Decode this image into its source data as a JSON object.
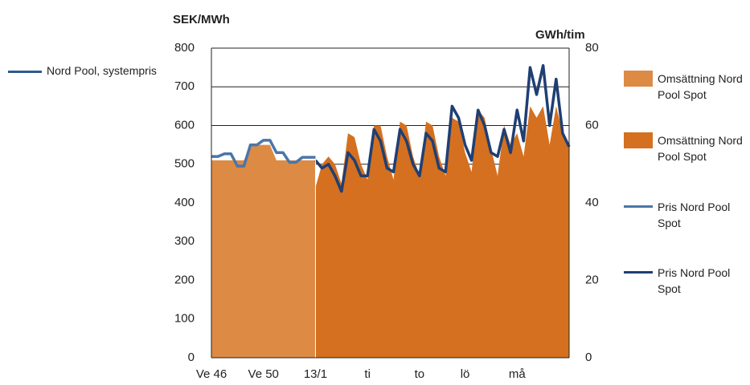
{
  "chart_data": {
    "type": "combo",
    "ylabel": "SEK/MWh",
    "y2label": "GWh/tim",
    "ylim": [
      0,
      800
    ],
    "yticks": [
      0,
      100,
      200,
      300,
      400,
      500,
      600,
      700,
      800
    ],
    "y2lim": [
      0,
      80
    ],
    "y2ticks": [
      0,
      20,
      40,
      60,
      80
    ],
    "grid": true,
    "categories": [
      "Ve 46",
      null,
      null,
      null,
      null,
      null,
      null,
      null,
      "Ve 50",
      null,
      null,
      null,
      null,
      null,
      null,
      null,
      "13/1",
      null,
      null,
      null,
      null,
      null,
      null,
      null,
      "ti",
      null,
      null,
      null,
      null,
      null,
      null,
      null,
      "to",
      null,
      null,
      null,
      null,
      null,
      null,
      "lö",
      null,
      null,
      null,
      null,
      null,
      null,
      null,
      "må",
      null,
      null,
      null,
      null,
      null,
      null,
      null,
      null
    ],
    "extra_legend": {
      "name": "Nord Pool, systempris",
      "color": "#2e5a8e"
    },
    "series": [
      {
        "name": "Omsättning Nord Pool Spot",
        "type": "area",
        "axis": "y2",
        "color": "#dd8a45",
        "values": [
          51,
          51,
          51,
          51,
          51,
          51,
          55,
          55,
          55,
          55,
          51,
          51,
          51,
          51,
          51,
          51,
          51,
          null,
          null,
          null,
          null,
          null,
          null,
          null,
          null,
          null,
          null,
          null,
          null,
          null,
          null,
          null,
          null,
          null,
          null,
          null,
          null,
          null,
          null,
          null,
          null,
          null,
          null,
          null,
          null,
          null,
          null,
          null,
          null,
          null,
          null,
          null,
          null,
          null,
          null,
          null
        ]
      },
      {
        "name": "Omsättning Nord Pool Spot",
        "type": "area",
        "axis": "y2",
        "color": "#d4701f",
        "values": [
          null,
          null,
          null,
          null,
          null,
          null,
          null,
          null,
          null,
          null,
          null,
          null,
          null,
          null,
          null,
          null,
          44,
          50,
          52,
          50,
          45,
          58,
          57,
          50,
          46,
          60,
          60,
          52,
          46,
          61,
          60,
          52,
          47,
          61,
          60,
          52,
          47,
          62,
          61,
          53,
          48,
          64,
          62,
          54,
          47,
          60,
          55,
          58,
          52,
          65,
          62,
          65,
          55,
          65,
          58,
          55
        ]
      },
      {
        "name": "Pris Nord Pool Spot",
        "type": "line",
        "axis": "y",
        "color": "#4a76a8",
        "values": [
          520,
          520,
          527,
          527,
          495,
          495,
          550,
          550,
          562,
          562,
          530,
          530,
          505,
          505,
          518,
          518,
          518,
          null,
          null,
          null,
          null,
          null,
          null,
          null,
          null,
          null,
          null,
          null,
          null,
          null,
          null,
          null,
          null,
          null,
          null,
          null,
          null,
          null,
          null,
          null,
          null,
          null,
          null,
          null,
          null,
          null,
          null,
          null,
          null,
          null,
          null,
          null,
          null,
          null,
          null,
          null
        ]
      },
      {
        "name": "Pris Nord Pool Spot",
        "type": "line",
        "axis": "y",
        "color": "#1f3f73",
        "values": [
          null,
          null,
          null,
          null,
          null,
          null,
          null,
          null,
          null,
          null,
          null,
          null,
          null,
          null,
          null,
          null,
          510,
          490,
          500,
          470,
          430,
          530,
          510,
          470,
          470,
          590,
          560,
          490,
          480,
          590,
          560,
          500,
          470,
          580,
          560,
          490,
          480,
          650,
          620,
          550,
          510,
          640,
          600,
          530,
          520,
          590,
          530,
          640,
          560,
          750,
          680,
          755,
          600,
          720,
          580,
          545
        ]
      }
    ]
  }
}
